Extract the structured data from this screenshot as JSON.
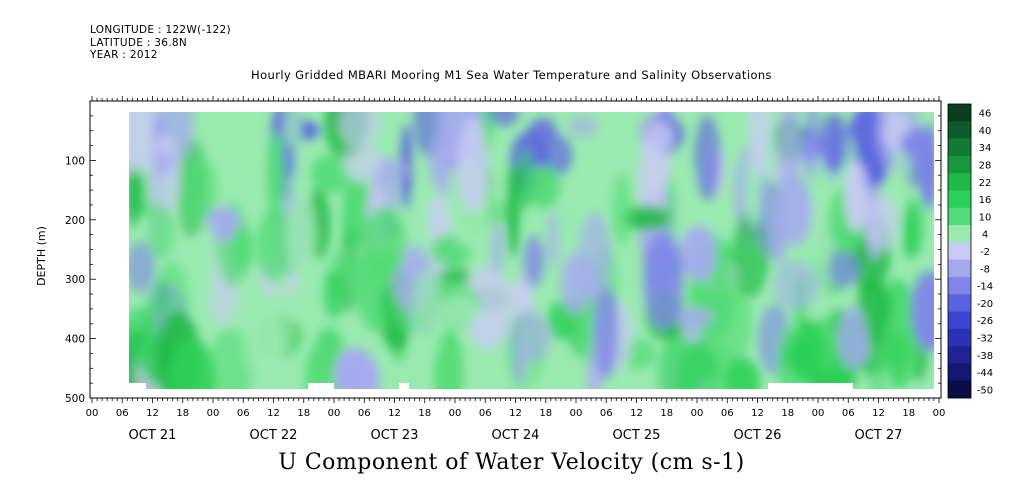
{
  "header": {
    "longitude": "LONGITUDE : 122W(-122)",
    "latitude": "LATITUDE : 36.8N",
    "year": "YEAR : 2012"
  },
  "chart_data": {
    "type": "heatmap",
    "title": "Hourly Gridded MBARI Mooring M1 Sea Water Temperature and Salinity Observations",
    "bottom_title": "U Component of Water Velocity (cm s-1)",
    "ylabel": "DEPTH (m)",
    "ylim": [
      500,
      0
    ],
    "y_ticks": [
      "100",
      "200",
      "300",
      "400",
      "500"
    ],
    "x_hour_labels": [
      "00",
      "06",
      "12",
      "18",
      "00",
      "06",
      "12",
      "18",
      "00",
      "06",
      "12",
      "18",
      "00",
      "06",
      "12",
      "18",
      "00",
      "06",
      "12",
      "18",
      "00",
      "06",
      "12",
      "18",
      "00",
      "06",
      "12",
      "18",
      "00"
    ],
    "x_day_labels": [
      "OCT 21",
      "OCT 22",
      "OCT 23",
      "OCT 24",
      "OCT 25",
      "OCT 26",
      "OCT 27"
    ],
    "colorbar": {
      "labels": [
        "46",
        "40",
        "34",
        "28",
        "22",
        "16",
        "10",
        "4",
        "-2",
        "-8",
        "-14",
        "-20",
        "-26",
        "-32",
        "-38",
        "-44",
        "-50"
      ],
      "colors": {
        "46": "#0a3d1e",
        "40": "#0f5a2a",
        "34": "#137a33",
        "28": "#18983c",
        "22": "#1fb946",
        "16": "#2bd057",
        "10": "#52db74",
        "4": "#9aeab0",
        "-2": "#c7cbf2",
        "-8": "#a4a9ee",
        "-14": "#7f86e8",
        "-20": "#5c63e0",
        "-26": "#3d44d4",
        "-32": "#2d33b8",
        "-38": "#1f2494",
        "-44": "#141870",
        "-50": "#0a0c48"
      }
    }
  }
}
